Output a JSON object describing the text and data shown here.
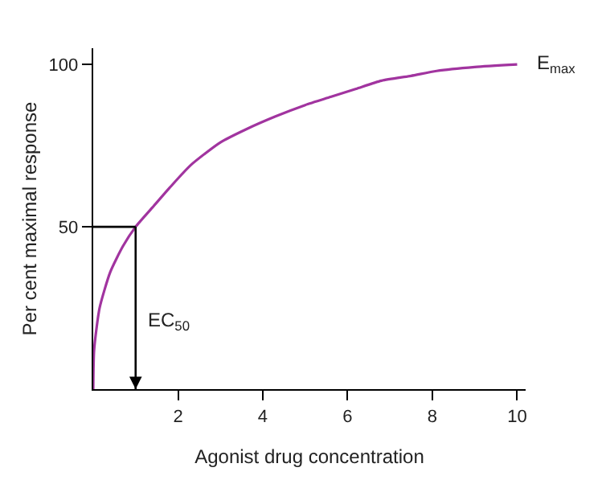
{
  "chart_data": {
    "type": "line",
    "xlabel": "Agonist drug concentration",
    "ylabel": "Per cent maximal response",
    "x": [
      0,
      0.02,
      0.15,
      0.4,
      0.7,
      1,
      1.4,
      1.8,
      2.3,
      3,
      3.6,
      4.3,
      5,
      5.6,
      6.2,
      6.8,
      7.5,
      8.1,
      9,
      10
    ],
    "series": [
      {
        "color": "#a1349f",
        "values": [
          0,
          12,
          25,
          36,
          44,
          50,
          56,
          62,
          69,
          76,
          80,
          84,
          87.5,
          90,
          92.5,
          95,
          96.5,
          98,
          99.2,
          100
        ]
      }
    ],
    "xlim": [
      0,
      10.2
    ],
    "ylim": [
      0,
      105
    ],
    "xticks": [
      2,
      4,
      6,
      8,
      10
    ],
    "yticks": [
      50,
      100
    ],
    "ref_lines": [
      {
        "axis": "x",
        "value": 1,
        "label": "EC$_{50}$",
        "color": "#000000"
      },
      {
        "axis": "y",
        "value": 50,
        "color": "#000000"
      }
    ],
    "annotations": [
      {
        "text": "E$_{max}$",
        "x": 10,
        "y": 100
      }
    ],
    "marker": "none",
    "line_style": "solid"
  }
}
